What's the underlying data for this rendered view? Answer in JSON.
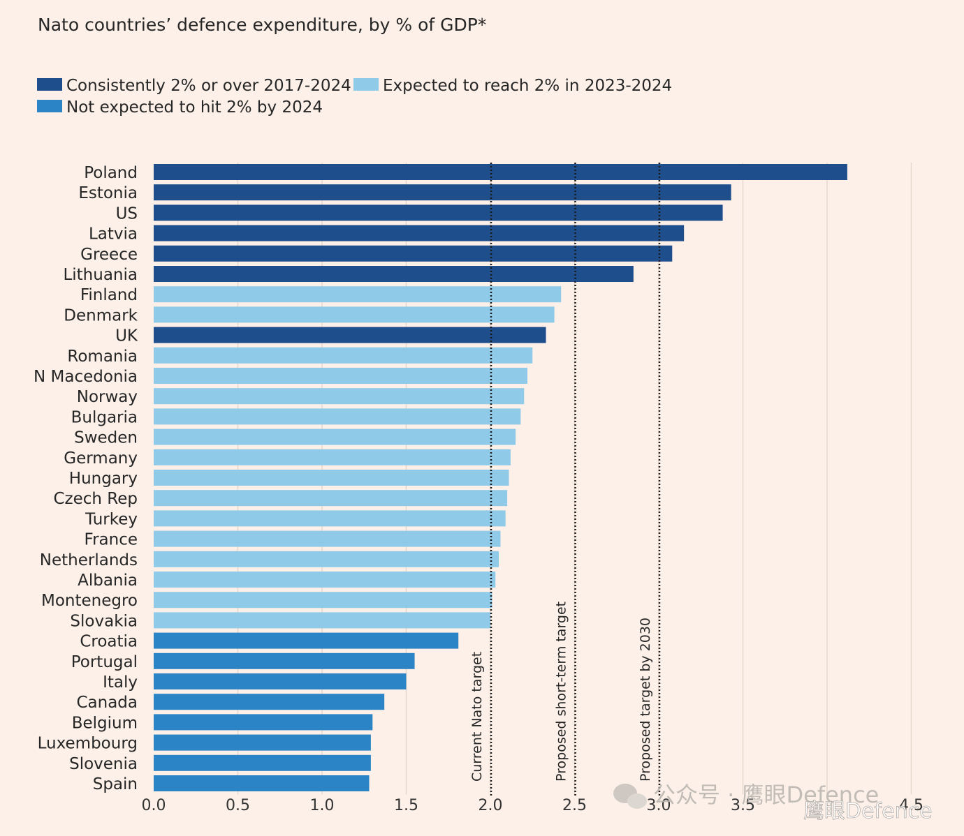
{
  "chart_data": {
    "type": "bar",
    "orientation": "horizontal",
    "title": "Nato countries’ defence expenditure, by % of GDP*",
    "xlim": [
      0,
      4.5
    ],
    "x_ticks": [
      "0.0",
      "0.5",
      "1.0",
      "1.5",
      "2.0",
      "2.5",
      "3.0",
      "3.5",
      "4.5"
    ],
    "x_tick_values": [
      0.0,
      0.5,
      1.0,
      1.5,
      2.0,
      2.5,
      3.0,
      3.5,
      4.5
    ],
    "grid": true,
    "legend": {
      "placement": "top-left",
      "items": [
        {
          "label": "Consistently 2% or over 2017-2024",
          "color": "#1f4e8c",
          "group": "consistent"
        },
        {
          "label": "Expected to reach 2% in 2023-2024",
          "color": "#8fcbe8",
          "group": "expected"
        },
        {
          "label": "Not expected to hit 2% by 2024",
          "color": "#2b84c6",
          "group": "not"
        }
      ]
    },
    "reference_lines": [
      {
        "value": 2.0,
        "label": "Current Nato target"
      },
      {
        "value": 2.5,
        "label": "Proposed short-term target"
      },
      {
        "value": 3.0,
        "label": "Proposed target by 2030"
      }
    ],
    "categories": [
      "Poland",
      "Estonia",
      "US",
      "Latvia",
      "Greece",
      "Lithuania",
      "Finland",
      "Denmark",
      "UK",
      "Romania",
      "N Macedonia",
      "Norway",
      "Bulgaria",
      "Sweden",
      "Germany",
      "Hungary",
      "Czech Rep",
      "Turkey",
      "France",
      "Netherlands",
      "Albania",
      "Montenegro",
      "Slovakia",
      "Croatia",
      "Portugal",
      "Italy",
      "Canada",
      "Belgium",
      "Luxembourg",
      "Slovenia",
      "Spain"
    ],
    "values": [
      4.12,
      3.43,
      3.38,
      3.15,
      3.08,
      2.85,
      2.42,
      2.38,
      2.33,
      2.25,
      2.22,
      2.2,
      2.18,
      2.15,
      2.12,
      2.11,
      2.1,
      2.09,
      2.06,
      2.05,
      2.03,
      2.01,
      2.0,
      1.81,
      1.55,
      1.5,
      1.37,
      1.3,
      1.29,
      1.29,
      1.28
    ],
    "groups": [
      "consistent",
      "consistent",
      "consistent",
      "consistent",
      "consistent",
      "consistent",
      "expected",
      "expected",
      "consistent",
      "expected",
      "expected",
      "expected",
      "expected",
      "expected",
      "expected",
      "expected",
      "expected",
      "expected",
      "expected",
      "expected",
      "expected",
      "expected",
      "expected",
      "not",
      "not",
      "not",
      "not",
      "not",
      "not",
      "not",
      "not"
    ]
  },
  "watermark": {
    "text": "公众号 · 鹰眼Defence",
    "secondary": "鹰眼Defence"
  }
}
